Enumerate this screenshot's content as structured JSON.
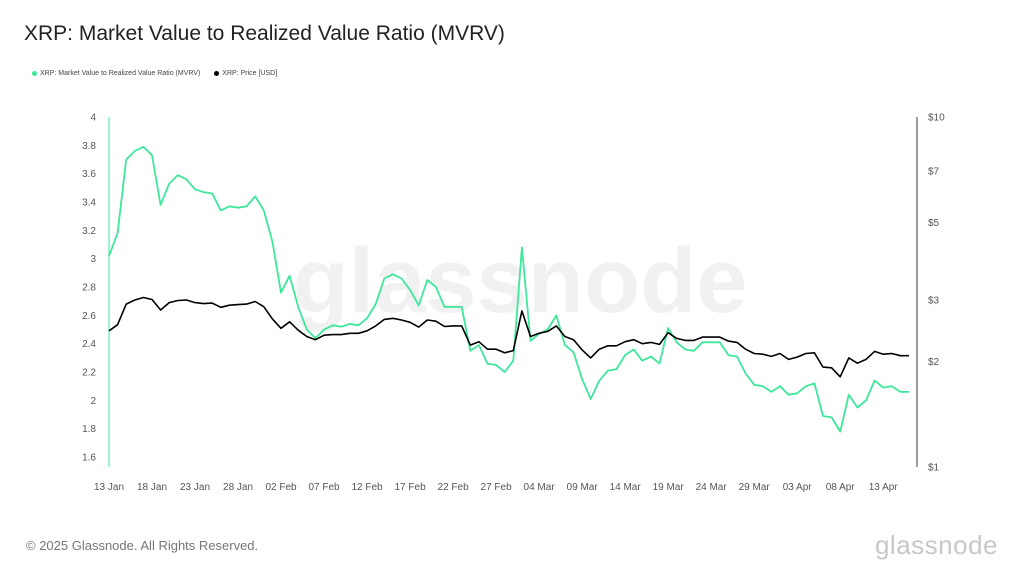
{
  "title": "XRP: Market Value to Realized Value Ratio (MVRV)",
  "legend": [
    {
      "label": "XRP: Market Value to Realized Value Ratio (MVRV)",
      "color": "#3ee89a"
    },
    {
      "label": "XRP: Price [USD]",
      "color": "#000000"
    }
  ],
  "footer": "© 2025 Glassnode. All Rights Reserved.",
  "watermark": "glassnode",
  "chart_data": {
    "type": "line",
    "title": "XRP: Market Value to Realized Value Ratio (MVRV)",
    "x_ticks": [
      "13 Jan",
      "18 Jan",
      "23 Jan",
      "28 Jan",
      "02 Feb",
      "07 Feb",
      "12 Feb",
      "17 Feb",
      "22 Feb",
      "27 Feb",
      "04 Mar",
      "09 Mar",
      "14 Mar",
      "19 Mar",
      "24 Mar",
      "29 Mar",
      "03 Apr",
      "08 Apr",
      "13 Apr"
    ],
    "y_left": {
      "ticks": [
        "1.6",
        "1.8",
        "2",
        "2.2",
        "2.4",
        "2.6",
        "2.8",
        "3",
        "3.2",
        "3.4",
        "3.6",
        "3.8",
        "4"
      ],
      "range": [
        1.53,
        4
      ]
    },
    "y_right": {
      "scale": "log",
      "ticks": [
        {
          "label": "$1",
          "value": 1
        },
        {
          "label": "$2",
          "value": 2
        },
        {
          "label": "$3",
          "value": 3
        },
        {
          "label": "$5",
          "value": 5
        },
        {
          "label": "$7",
          "value": 7
        },
        {
          "label": "$10",
          "value": 10
        }
      ],
      "range": [
        1,
        10
      ]
    },
    "grid": false,
    "legend_position": "top-left",
    "series": [
      {
        "name": "XRP: Market Value to Realized Value Ratio (MVRV)",
        "axis": "left",
        "color": "#3ee89a",
        "values": [
          3.02,
          3.18,
          3.7,
          3.76,
          3.79,
          3.73,
          3.38,
          3.53,
          3.59,
          3.56,
          3.49,
          3.47,
          3.46,
          3.34,
          3.37,
          3.36,
          3.37,
          3.44,
          3.34,
          3.12,
          2.76,
          2.88,
          2.66,
          2.5,
          2.44,
          2.5,
          2.53,
          2.52,
          2.54,
          2.53,
          2.58,
          2.68,
          2.86,
          2.89,
          2.86,
          2.78,
          2.67,
          2.85,
          2.8,
          2.66,
          2.66,
          2.66,
          2.35,
          2.39,
          2.26,
          2.25,
          2.2,
          2.28,
          3.08,
          2.42,
          2.47,
          2.5,
          2.6,
          2.39,
          2.34,
          2.15,
          2.01,
          2.14,
          2.21,
          2.22,
          2.32,
          2.36,
          2.28,
          2.31,
          2.26,
          2.51,
          2.41,
          2.36,
          2.35,
          2.41,
          2.41,
          2.41,
          2.32,
          2.31,
          2.19,
          2.11,
          2.1,
          2.06,
          2.1,
          2.04,
          2.05,
          2.1,
          2.12,
          1.89,
          1.88,
          1.78,
          2.04,
          1.95,
          2.0,
          2.14,
          2.09,
          2.1,
          2.06,
          2.06
        ]
      },
      {
        "name": "XRP: Price [USD]",
        "axis": "right",
        "color": "#000000",
        "values": [
          2.45,
          2.55,
          2.92,
          3.0,
          3.05,
          3.01,
          2.81,
          2.95,
          2.99,
          3.0,
          2.95,
          2.93,
          2.94,
          2.86,
          2.9,
          2.91,
          2.92,
          2.97,
          2.87,
          2.65,
          2.49,
          2.6,
          2.46,
          2.36,
          2.31,
          2.38,
          2.39,
          2.39,
          2.41,
          2.41,
          2.45,
          2.53,
          2.64,
          2.66,
          2.63,
          2.59,
          2.51,
          2.63,
          2.61,
          2.52,
          2.53,
          2.53,
          2.23,
          2.28,
          2.17,
          2.17,
          2.12,
          2.15,
          2.79,
          2.36,
          2.41,
          2.44,
          2.53,
          2.36,
          2.31,
          2.16,
          2.05,
          2.17,
          2.22,
          2.22,
          2.28,
          2.31,
          2.25,
          2.27,
          2.24,
          2.42,
          2.33,
          2.3,
          2.3,
          2.35,
          2.35,
          2.35,
          2.29,
          2.27,
          2.17,
          2.11,
          2.1,
          2.07,
          2.11,
          2.03,
          2.06,
          2.11,
          2.12,
          1.93,
          1.92,
          1.81,
          2.05,
          1.98,
          2.03,
          2.14,
          2.1,
          2.11,
          2.08,
          2.08
        ]
      }
    ]
  }
}
